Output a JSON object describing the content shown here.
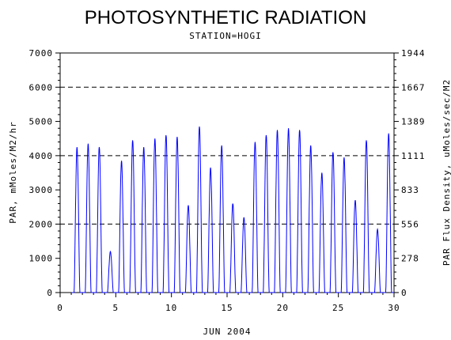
{
  "chart_data": {
    "type": "line",
    "title": "PHOTOSYNTHETIC RADIATION",
    "subtitle": "STATION=HOGI",
    "xlabel": "JUN 2004",
    "ylabel": "PAR, mMoles/M2/hr",
    "y2label": "PAR Flux Density, uMoles/sec/M2",
    "xlim": [
      0,
      30
    ],
    "ylim": [
      0,
      7000
    ],
    "x_ticks": [
      "0",
      "5",
      "10",
      "15",
      "20",
      "25",
      "30"
    ],
    "y_ticks": [
      "0",
      "1000",
      "2000",
      "3000",
      "4000",
      "5000",
      "6000",
      "7000"
    ],
    "y2_ticks": [
      "0",
      "278",
      "556",
      "833",
      "1111",
      "1389",
      "1667",
      "1944"
    ],
    "gridlines_y": [
      2000,
      4000,
      6000
    ],
    "series_color": "#0000ff",
    "series": [
      {
        "daily_peaks": [
          {
            "day": 1,
            "peak": 4250
          },
          {
            "day": 2,
            "peak": 4350
          },
          {
            "day": 3,
            "peak": 4250
          },
          {
            "day": 4,
            "peak": 1200
          },
          {
            "day": 5,
            "peak": 3850
          },
          {
            "day": 6,
            "peak": 4450
          },
          {
            "day": 7,
            "peak": 4250
          },
          {
            "day": 8,
            "peak": 4500
          },
          {
            "day": 9,
            "peak": 4600
          },
          {
            "day": 10,
            "peak": 4550
          },
          {
            "day": 11,
            "peak": 2550
          },
          {
            "day": 12,
            "peak": 4850
          },
          {
            "day": 13,
            "peak": 3650
          },
          {
            "day": 14,
            "peak": 4300
          },
          {
            "day": 15,
            "peak": 2600
          },
          {
            "day": 16,
            "peak": 2200
          },
          {
            "day": 17,
            "peak": 4400
          },
          {
            "day": 18,
            "peak": 4600
          },
          {
            "day": 19,
            "peak": 4750
          },
          {
            "day": 20,
            "peak": 4800
          },
          {
            "day": 21,
            "peak": 4750
          },
          {
            "day": 22,
            "peak": 4300
          },
          {
            "day": 23,
            "peak": 3500
          },
          {
            "day": 24,
            "peak": 4100
          },
          {
            "day": 25,
            "peak": 3950
          },
          {
            "day": 26,
            "peak": 2700
          },
          {
            "day": 27,
            "peak": 4450
          },
          {
            "day": 28,
            "peak": 1850
          },
          {
            "day": 29,
            "peak": 4650
          }
        ]
      }
    ]
  }
}
